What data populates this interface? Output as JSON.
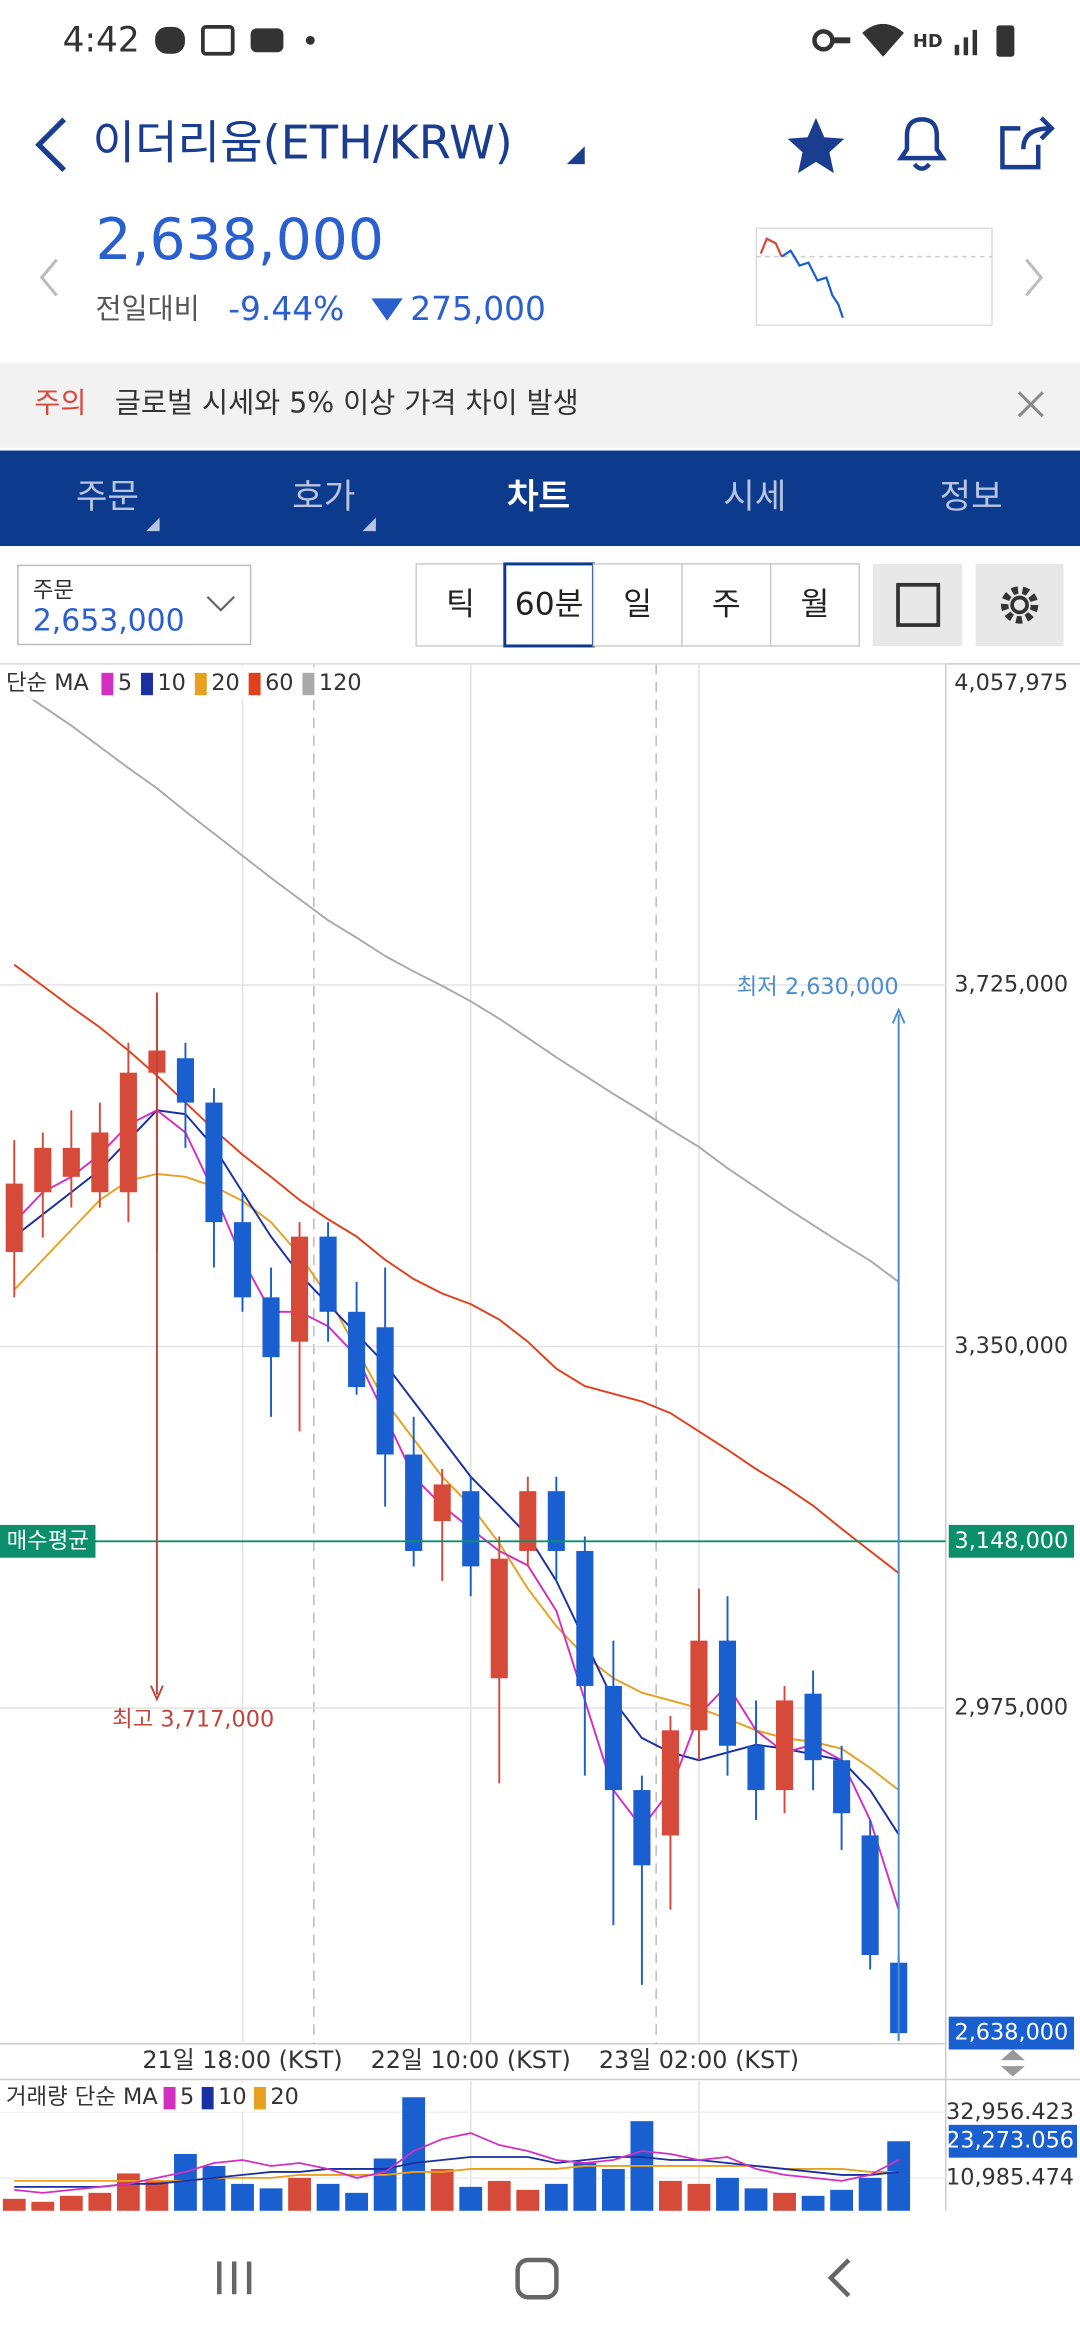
{
  "status_bar": {
    "time": "4:42",
    "network": "HD"
  },
  "header": {
    "title": "이더리움(ETH/KRW)"
  },
  "price": {
    "current": "2,638,000",
    "change_label": "전일대비",
    "change_percent": "-9.44%",
    "change_amount": "275,000"
  },
  "notice": {
    "tag": "주의",
    "text": "글로벌 시세와 5% 이상 가격 차이 발생"
  },
  "tabs": [
    "주문",
    "호가",
    "차트",
    "시세",
    "정보"
  ],
  "order": {
    "label": "주문",
    "price": "2,653,000"
  },
  "intervals": [
    "틱",
    "60분",
    "일",
    "주",
    "월"
  ],
  "chart_data": [
    {
      "type": "candlestick",
      "legend_title": "단순 MA",
      "categories": [
        null,
        null,
        null,
        null,
        null,
        null,
        null,
        null,
        "21일 18:00 (KST)",
        null,
        null,
        null,
        null,
        null,
        null,
        null,
        "22일 10:00 (KST)",
        null,
        null,
        null,
        null,
        null,
        null,
        null,
        "23일 02:00 (KST)",
        null,
        null,
        null,
        null,
        null,
        null,
        null
      ],
      "open": [
        3448000,
        3510000,
        3526000,
        3510000,
        3510000,
        3634000,
        3649000,
        3603000,
        3479000,
        3401000,
        3355000,
        3464000,
        3386000,
        3370000,
        3238000,
        3169000,
        3200000,
        3006000,
        3138000,
        3200000,
        3138000,
        2998000,
        2890000,
        2843000,
        2952000,
        3045000,
        2936000,
        2890000,
        2990000,
        2921000,
        2843000,
        2711000
      ],
      "high": [
        3564000,
        3572000,
        3595000,
        3603000,
        3665000,
        3717000,
        3665000,
        3618000,
        3510000,
        3432000,
        3479000,
        3479000,
        3417000,
        3432000,
        3277000,
        3223000,
        3215000,
        3153000,
        3215000,
        3215000,
        3153000,
        3045000,
        2905000,
        2967000,
        3099000,
        3091000,
        2983000,
        2998000,
        3014000,
        2936000,
        2859000,
        2719000
      ],
      "low": [
        3401000,
        3463000,
        3494000,
        3494000,
        3479000,
        3448000,
        3556000,
        3432000,
        3386000,
        3277000,
        3262000,
        3355000,
        3300000,
        3184000,
        3122000,
        3107000,
        3091000,
        2897000,
        3122000,
        3107000,
        2905000,
        2750000,
        2688000,
        2766000,
        2921000,
        2905000,
        2859000,
        2866000,
        2890000,
        2828000,
        2704000,
        2630000
      ],
      "close": [
        3519000,
        3556000,
        3556000,
        3572000,
        3634000,
        3657000,
        3603000,
        3479000,
        3401000,
        3339000,
        3464000,
        3386000,
        3308000,
        3238000,
        3138000,
        3207000,
        3122000,
        3130000,
        3200000,
        3138000,
        2998000,
        2890000,
        2812000,
        2952000,
        3045000,
        2936000,
        2890000,
        2983000,
        2921000,
        2866000,
        2719000,
        2638000
      ],
      "up_color": "#d64a3a",
      "down_color": "#1a5fd0",
      "ma": [
        {
          "name": "5",
          "color": "#d32fc0",
          "values": [
            3479000,
            3510000,
            3526000,
            3549000,
            3580000,
            3595000,
            3572000,
            3510000,
            3440000,
            3386000,
            3386000,
            3371000,
            3340000,
            3278000,
            3215000,
            3185000,
            3161000,
            3138000,
            3123000,
            3076000,
            2983000,
            2890000,
            2851000,
            2890000,
            2968000,
            2999000,
            2952000,
            2929000,
            2937000,
            2921000,
            2859000,
            2766000
          ]
        },
        {
          "name": "10",
          "color": "#1a2fa0",
          "values": [
            3464000,
            3487000,
            3510000,
            3533000,
            3564000,
            3595000,
            3591000,
            3557000,
            3510000,
            3464000,
            3425000,
            3394000,
            3363000,
            3332000,
            3293000,
            3254000,
            3215000,
            3185000,
            3154000,
            3107000,
            3045000,
            2983000,
            2944000,
            2929000,
            2921000,
            2929000,
            2937000,
            2933000,
            2927000,
            2921000,
            2890000,
            2844000
          ]
        },
        {
          "name": "20",
          "color": "#e8a020",
          "values": [
            3409000,
            3440000,
            3471000,
            3502000,
            3522000,
            3529000,
            3526000,
            3516000,
            3501000,
            3479000,
            3445000,
            3402000,
            3347000,
            3293000,
            3254000,
            3215000,
            3185000,
            3146000,
            3099000,
            3060000,
            3029000,
            3006000,
            2991000,
            2983000,
            2975000,
            2964000,
            2952000,
            2944000,
            2940000,
            2933000,
            2913000,
            2890000
          ]
        },
        {
          "name": "60",
          "color": "#e0401c",
          "values": [
            3746000,
            3724000,
            3702000,
            3681000,
            3657000,
            3631000,
            3603000,
            3575000,
            3549000,
            3526000,
            3502000,
            3482000,
            3464000,
            3440000,
            3420000,
            3405000,
            3394000,
            3378000,
            3355000,
            3327000,
            3309000,
            3301000,
            3293000,
            3281000,
            3262000,
            3243000,
            3223000,
            3205000,
            3185000,
            3161000,
            3138000,
            3115000
          ]
        },
        {
          "name": "120",
          "color": "#aaaaaa",
          "values": [
            4034000,
            4014000,
            3994000,
            3972000,
            3950000,
            3929000,
            3905000,
            3882000,
            3859000,
            3836000,
            3814000,
            3792000,
            3774000,
            3755000,
            3739000,
            3724000,
            3708000,
            3690000,
            3670000,
            3650000,
            3631000,
            3612000,
            3594000,
            3575000,
            3557000,
            3535000,
            3515000,
            3495000,
            3476000,
            3457000,
            3439000,
            3417000
          ]
        }
      ],
      "ylim": [
        2627000,
        4057975
      ],
      "yticks": [
        {
          "value": 2975000,
          "label": "2,975,000"
        },
        {
          "value": 3350000,
          "label": "3,350,000"
        },
        {
          "value": 3725000,
          "label": "3,725,000"
        },
        {
          "value": 4057975,
          "label": "4,057,975"
        }
      ],
      "reference_line": {
        "name": "매수평균",
        "value": 3148000,
        "label": "3,148,000",
        "color": "#0a8f6a"
      },
      "last_label": "2,638,000",
      "high_label": {
        "text": "최고 3,717,000",
        "index": 5
      },
      "low_label": {
        "text": "최저 2,630,000",
        "index": 31
      },
      "grid": true
    },
    {
      "type": "bar",
      "legend_title": "거래량 단순 MA",
      "values": [
        4000,
        3000,
        5000,
        6000,
        12500,
        10000,
        19000,
        15000,
        9000,
        7500,
        11000,
        9000,
        6000,
        17500,
        38000,
        14000,
        8000,
        10000,
        7000,
        9000,
        16000,
        14000,
        30000,
        10000,
        9000,
        11000,
        7500,
        6000,
        5000,
        7000,
        11000,
        23273.056
      ],
      "ma": [
        {
          "name": "5",
          "color": "#d32fc0",
          "values": [
            7000,
            6000,
            7000,
            8000,
            9000,
            11000,
            13000,
            16000,
            17000,
            15000,
            16000,
            14000,
            11000,
            13000,
            20000,
            24000,
            26000,
            22000,
            20000,
            17000,
            16000,
            17000,
            20000,
            19000,
            17000,
            18000,
            14000,
            12000,
            11000,
            10000,
            12000,
            17000
          ]
        },
        {
          "name": "10",
          "color": "#1a2fa0",
          "values": [
            8000,
            8000,
            8000,
            8000,
            9000,
            9000,
            10000,
            11000,
            12000,
            13000,
            13000,
            14000,
            14000,
            14000,
            16000,
            17000,
            18000,
            18000,
            18000,
            16000,
            17000,
            18000,
            18000,
            17000,
            17000,
            16000,
            15000,
            14000,
            13000,
            12000,
            12000,
            13000
          ]
        },
        {
          "name": "20",
          "color": "#e8a020",
          "values": [
            10000,
            10000,
            10000,
            10000,
            10000,
            10000,
            10000,
            11000,
            11000,
            11000,
            12000,
            12000,
            12000,
            12000,
            13000,
            13000,
            14000,
            14000,
            14000,
            14000,
            15000,
            15000,
            15000,
            15000,
            15000,
            15000,
            15000,
            14000,
            14000,
            14000,
            13000,
            13000
          ]
        }
      ],
      "ylim": [
        0,
        43440
      ],
      "yticks": [
        {
          "value": 10985.474,
          "label": "10,985.474"
        },
        {
          "value": 32956.423,
          "label": "32,956.423"
        }
      ],
      "last_label": "23,273.056"
    }
  ]
}
